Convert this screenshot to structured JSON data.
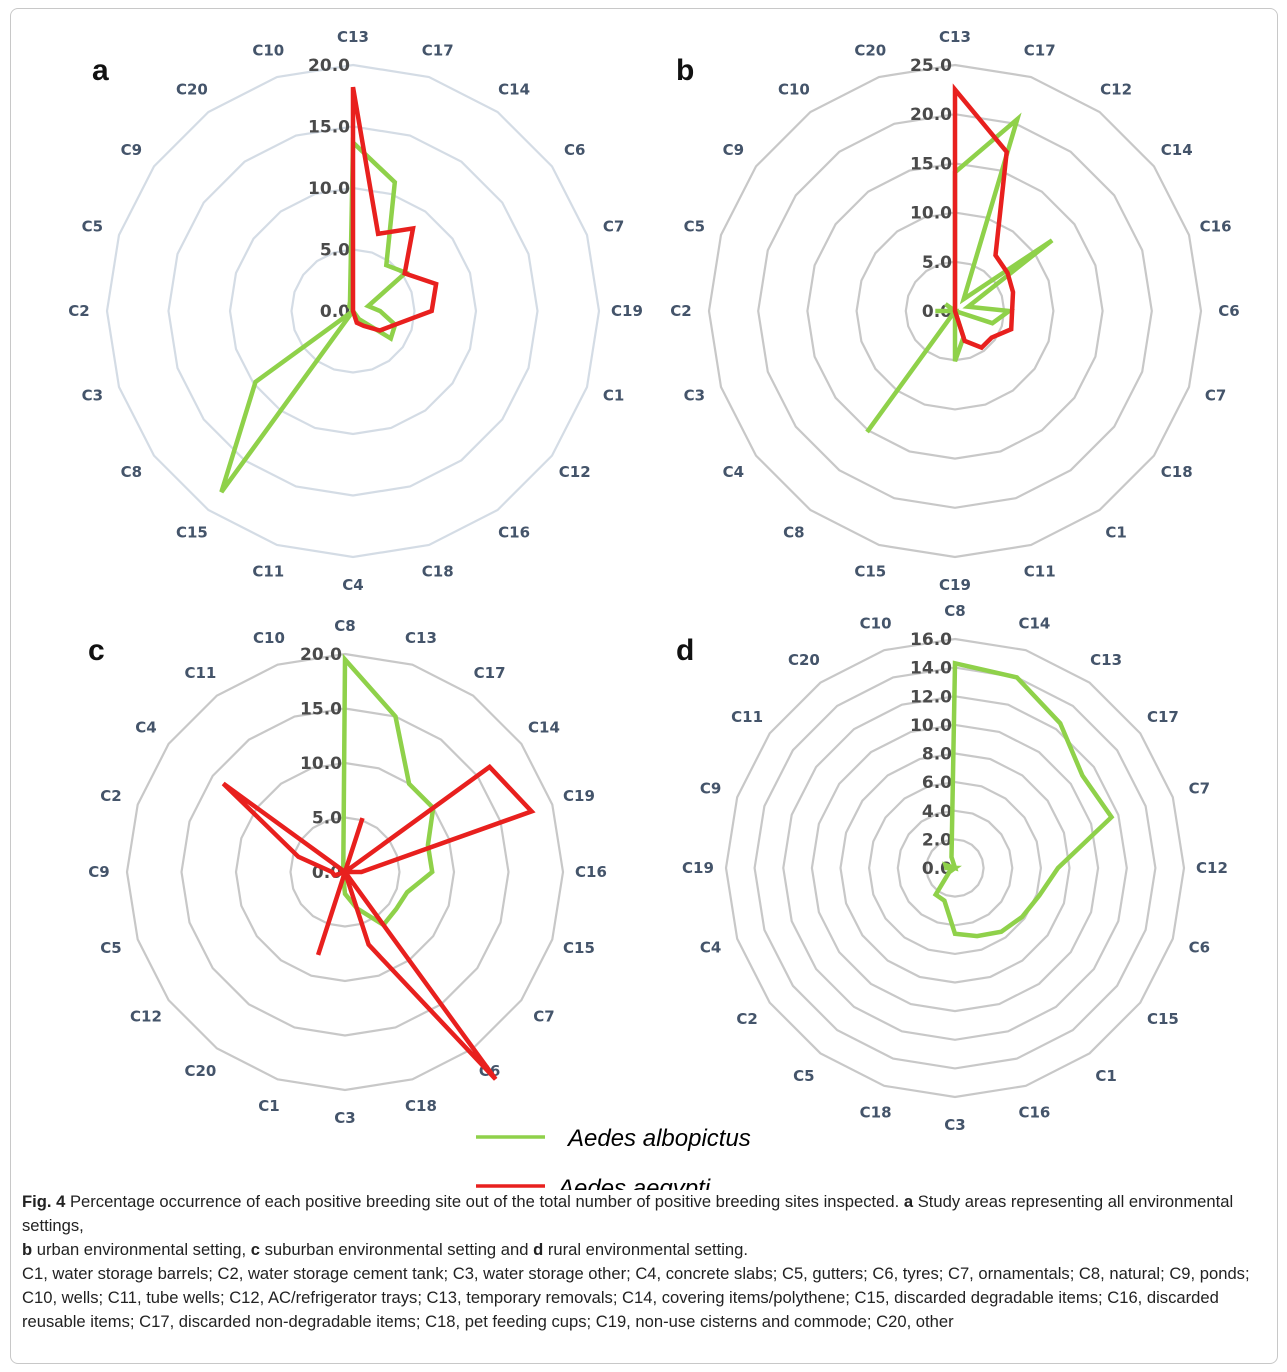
{
  "chart_data": [
    {
      "panel": "a",
      "type": "radar",
      "rmax": 20,
      "ticks": [
        "0.0",
        "5.0",
        "10.0",
        "15.0",
        "20.0"
      ],
      "grid_color": "#d4dce5",
      "categories": [
        "C13",
        "C17",
        "C14",
        "C6",
        "C7",
        "C19",
        "C1",
        "C12",
        "C16",
        "C18",
        "C4",
        "C11",
        "C15",
        "C8",
        "C3",
        "C2",
        "C5",
        "C9",
        "C20",
        "C10"
      ],
      "series": [
        {
          "name": "Aedes albopictus",
          "color": "#8fd14a",
          "values": [
            13.7,
            11.0,
            4.6,
            5.3,
            1.3,
            2.2,
            3.6,
            3.8,
            0.8,
            0.0,
            0.0,
            0.0,
            18.2,
            9.8,
            0.0,
            0.0,
            0.0,
            0.0,
            0.5,
            0.8
          ]
        },
        {
          "name": "Aedes aegypti",
          "color": "#e8201e",
          "values": [
            18.2,
            6.6,
            8.3,
            5.2,
            7.1,
            6.4,
            3.6,
            2.7,
            1.5,
            1.0,
            0.0,
            0.0,
            0.0,
            0.0,
            0.0,
            0.0,
            0.0,
            0.0,
            0.0,
            0.0
          ]
        }
      ]
    },
    {
      "panel": "b",
      "type": "radar",
      "rmax": 25,
      "ticks": [
        "0.0",
        "5.0",
        "10.0",
        "15.0",
        "20.0",
        "25.0"
      ],
      "grid_color": "#c8c8c8",
      "categories": [
        "C13",
        "C17",
        "C12",
        "C14",
        "C16",
        "C6",
        "C7",
        "C18",
        "C1",
        "C11",
        "C19",
        "C15",
        "C8",
        "C4",
        "C3",
        "C2",
        "C5",
        "C9",
        "C10",
        "C20"
      ],
      "series": [
        {
          "name": "Aedes albopictus",
          "color": "#8fd14a",
          "values": [
            14.1,
            20.5,
            1.5,
            12.2,
            1.4,
            5.5,
            4.0,
            0.0,
            0.0,
            2.8,
            5.1,
            0.0,
            15.2,
            0.0,
            0.0,
            2.0,
            0.0,
            1.2,
            0.0,
            0.0
          ]
        },
        {
          "name": "Aedes aegypti",
          "color": "#e8201e",
          "values": [
            22.5,
            17.0,
            7.0,
            6.6,
            6.2,
            5.8,
            6.0,
            4.6,
            4.6,
            3.2,
            0.0,
            0.0,
            0.0,
            0.0,
            0.0,
            0.0,
            0.0,
            0.0,
            0.0,
            0.0
          ]
        }
      ]
    },
    {
      "panel": "c",
      "type": "radar",
      "rmax": 20,
      "ticks": [
        "0.0",
        "5.0",
        "10.0",
        "15.0",
        "20.0"
      ],
      "grid_color": "#c8c8c8",
      "categories": [
        "C8",
        "C13",
        "C17",
        "C14",
        "C19",
        "C16",
        "C15",
        "C7",
        "C6",
        "C18",
        "C3",
        "C1",
        "C20",
        "C12",
        "C5",
        "C9",
        "C2",
        "C4",
        "C11",
        "C10"
      ],
      "series": [
        {
          "name": "Aedes albopictus",
          "color": "#8fd14a",
          "values": [
            19.5,
            15.0,
            10.0,
            10.0,
            8.0,
            8.0,
            6.0,
            5.8,
            6.0,
            3.5,
            2.0,
            0.5,
            0.0,
            0.0,
            0.0,
            0.0,
            0.0,
            0.0,
            0.0,
            0.5
          ]
        },
        {
          "name": "Aedes aegypti",
          "color": "#e8201e",
          "values": [
            0.0,
            5.2,
            0.0,
            16.4,
            18.0,
            1.5,
            0.0,
            0.0,
            23.5,
            7.0,
            0.0,
            8.0,
            0.0,
            0.0,
            1.0,
            1.2,
            4.5,
            13.8,
            0.0,
            0.0
          ]
        }
      ]
    },
    {
      "panel": "d",
      "type": "radar",
      "rmax": 16,
      "ticks": [
        "0.0",
        "2.0",
        "4.0",
        "6.0",
        "8.0",
        "10.0",
        "12.0",
        "14.0",
        "16.0"
      ],
      "grid_color": "#c8c8c8",
      "categories": [
        "C8",
        "C14",
        "C13",
        "C17",
        "C7",
        "C12",
        "C6",
        "C15",
        "C1",
        "C16",
        "C3",
        "C18",
        "C5",
        "C2",
        "C4",
        "C19",
        "C9",
        "C11",
        "C20",
        "C10"
      ],
      "series": [
        {
          "name": "Aedes albopictus",
          "color": "#8fd14a",
          "values": [
            14.3,
            14.0,
            12.5,
            11.0,
            11.5,
            7.2,
            6.2,
            5.8,
            5.5,
            5.0,
            4.6,
            2.4,
            2.3,
            0.5,
            0.0,
            0.6,
            0.7,
            0.0,
            0.0,
            0.8
          ]
        }
      ]
    }
  ],
  "legend": [
    {
      "label": "Aedes albopictus",
      "color": "#8fd14a"
    },
    {
      "label": "Aedes aegypti",
      "color": "#e8201e"
    }
  ],
  "caption": {
    "fig_label": "Fig. 4",
    "intro": "  Percentage occurrence of each positive breeding site out of the total number of positive breeding sites inspected. ",
    "seg_a_letter": "a",
    "seg_a_text": " Study areas representing all environmental settings, ",
    "seg_b_letter": "b",
    "seg_b_text": " urban environmental setting, ",
    "seg_c_letter": "c",
    "seg_c_text": " suburban environmental setting and ",
    "seg_d_letter": "d",
    "seg_d_text": " rural environmental setting.",
    "codes": "C1, water storage barrels; C2, water storage cement tank; C3, water storage other; C4, concrete slabs; C5, gutters; C6, tyres; C7, ornamentals; C8, natural; C9, ponds; C10, wells; C11, tube wells; C12, AC/refrigerator trays; C13, temporary removals; C14, covering items/polythene; C15, discarded degradable items; C16, discarded reusable items; C17, discarded non-degradable items; C18, pet feeding cups; C19, non-use cisterns and commode; C20, other"
  }
}
